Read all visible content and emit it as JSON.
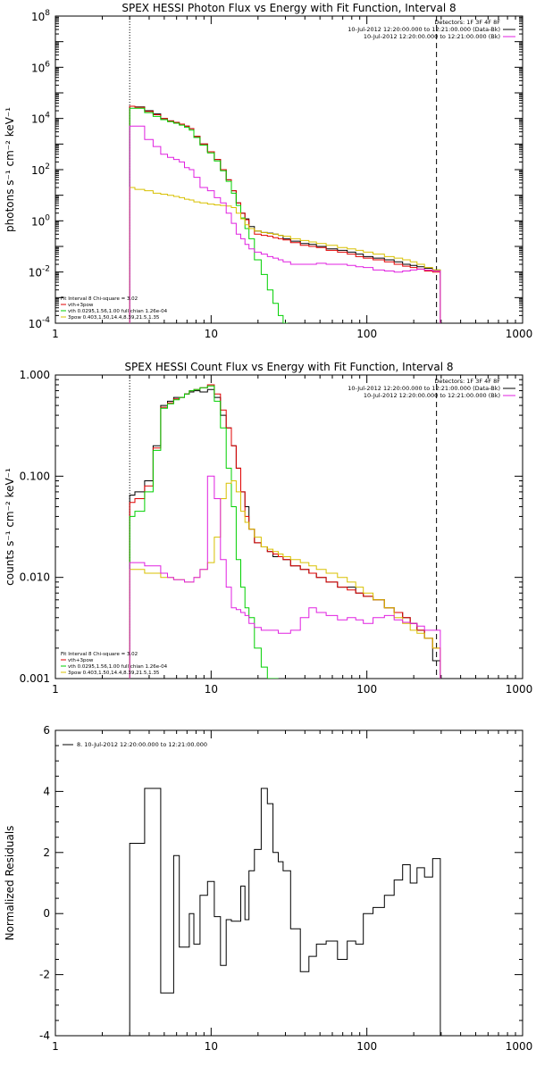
{
  "chart_data": [
    {
      "type": "line",
      "title": "SPEX HESSI Photon Flux vs Energy with Fit Function, Interval 8",
      "ylabel": "photons s⁻¹ cm⁻² keV⁻¹",
      "xlabel": "",
      "xscale": "log",
      "yscale": "log",
      "xlim": [
        1,
        1000
      ],
      "ylim": [
        0.0001,
        100000000
      ],
      "xticks": [
        "1",
        "10",
        "100",
        "1000"
      ],
      "yticks": [
        "10^-4",
        "10^-2",
        "10^0",
        "10^2",
        "10^4",
        "10^6",
        "10^8"
      ],
      "vlines": [
        {
          "x": 3,
          "style": "dotted"
        },
        {
          "x": 280,
          "style": "dashed"
        }
      ],
      "info_lines": [
        "Detectors: 1F 3F 4F 8F",
        "10-Jul-2012 12:20:00.000 to 12:21:00.000 (Data-Bk)",
        "10-Jul-2012 12:20:00.000 to 12:21:00.000 (Bk)"
      ],
      "info_colors": [
        "",
        "#000000",
        "#e020e0"
      ],
      "fit_legend": [
        "Fit Interval 8   Chi-square = 3.02",
        "vth+3pow",
        "vth 0.0295,1.56,1.00  full chian 1.26e-04",
        "3pow 0.403,1.50,14.4,8.39,21.5,1.35"
      ],
      "fit_colors": [
        "",
        "#e00000",
        "#00d000",
        "#d8c000"
      ],
      "series": [
        {
          "color": "#000000",
          "x": [
            3,
            3.5,
            4,
            4.5,
            5,
            5.5,
            6,
            6.5,
            7,
            7.5,
            8,
            9,
            10,
            11,
            12,
            13,
            14,
            15,
            16,
            17,
            18,
            20,
            22,
            24,
            26,
            28,
            30,
            35,
            40,
            45,
            50,
            60,
            70,
            80,
            90,
            100,
            120,
            140,
            160,
            180,
            200,
            220,
            250,
            280
          ],
          "y": [
            30000,
            28000,
            20000,
            15000,
            10000,
            8000,
            7000,
            6000,
            5000,
            4000,
            2000,
            1000,
            500,
            250,
            100,
            40,
            15,
            5,
            2,
            1.2,
            0.6,
            0.4,
            0.35,
            0.33,
            0.3,
            0.27,
            0.2,
            0.16,
            0.13,
            0.12,
            0.1,
            0.08,
            0.07,
            0.06,
            0.05,
            0.04,
            0.035,
            0.03,
            0.025,
            0.02,
            0.018,
            0.016,
            0.014,
            0.012
          ]
        },
        {
          "color": "#e00000",
          "x": [
            3,
            3.5,
            4,
            4.5,
            5,
            5.5,
            6,
            6.5,
            7,
            7.5,
            8,
            9,
            10,
            11,
            12,
            13,
            14,
            15,
            16,
            17,
            18,
            20,
            22,
            24,
            26,
            28,
            30,
            35,
            40,
            45,
            50,
            60,
            70,
            80,
            90,
            100,
            120,
            140,
            160,
            180,
            200,
            220,
            250,
            280
          ],
          "y": [
            30000,
            27000,
            19000,
            14000,
            10000,
            8000,
            7000,
            6000,
            5000,
            4000,
            2000,
            1000,
            500,
            250,
            100,
            40,
            15,
            5,
            2,
            1.1,
            0.5,
            0.3,
            0.27,
            0.25,
            0.22,
            0.2,
            0.18,
            0.14,
            0.11,
            0.1,
            0.09,
            0.07,
            0.06,
            0.05,
            0.04,
            0.035,
            0.03,
            0.025,
            0.02,
            0.017,
            0.015,
            0.013,
            0.011,
            0.01
          ]
        },
        {
          "color": "#00d000",
          "x": [
            3,
            3.5,
            4,
            4.5,
            5,
            5.5,
            6,
            6.5,
            7,
            7.5,
            8,
            9,
            10,
            11,
            12,
            13,
            14,
            15,
            16,
            17,
            18,
            20,
            22,
            24,
            26,
            28,
            30
          ],
          "y": [
            25000,
            25000,
            17000,
            12000,
            9000,
            7500,
            6500,
            5500,
            4500,
            3500,
            1800,
            900,
            450,
            220,
            90,
            35,
            12,
            4,
            1.3,
            0.5,
            0.2,
            0.03,
            0.008,
            0.002,
            0.0006,
            0.0002,
            0.0001
          ]
        },
        {
          "color": "#d8c000",
          "x": [
            3,
            3.5,
            4,
            4.5,
            5,
            5.5,
            6,
            6.5,
            7,
            7.5,
            8,
            9,
            10,
            11,
            12,
            13,
            14,
            15,
            16,
            17,
            18,
            20,
            22,
            24,
            26,
            28,
            30,
            35,
            40,
            45,
            50,
            60,
            70,
            80,
            90,
            100,
            120,
            140,
            160,
            180,
            200,
            220,
            250,
            280
          ],
          "y": [
            20,
            17,
            15,
            12,
            11,
            10,
            9,
            8,
            7,
            6.5,
            5.5,
            5,
            4.5,
            4.2,
            4,
            3.8,
            3.3,
            2,
            1.2,
            0.7,
            0.5,
            0.4,
            0.35,
            0.32,
            0.3,
            0.27,
            0.25,
            0.2,
            0.17,
            0.15,
            0.13,
            0.11,
            0.09,
            0.08,
            0.07,
            0.06,
            0.05,
            0.04,
            0.035,
            0.03,
            0.025,
            0.02,
            0.015,
            0.012
          ]
        },
        {
          "color": "#e020e0",
          "x": [
            3,
            3.5,
            4,
            4.5,
            5,
            5.5,
            6,
            6.5,
            7,
            7.5,
            8,
            9,
            10,
            11,
            12,
            13,
            14,
            15,
            16,
            17,
            18,
            20,
            22,
            24,
            26,
            28,
            30,
            35,
            40,
            45,
            50,
            60,
            70,
            80,
            90,
            100,
            120,
            140,
            160,
            180,
            200,
            220,
            250,
            280
          ],
          "y": [
            5000,
            5000,
            1500,
            800,
            400,
            300,
            250,
            200,
            120,
            100,
            50,
            20,
            15,
            8,
            5,
            2,
            0.8,
            0.3,
            0.2,
            0.12,
            0.08,
            0.06,
            0.05,
            0.04,
            0.035,
            0.03,
            0.025,
            0.02,
            0.02,
            0.02,
            0.022,
            0.02,
            0.02,
            0.018,
            0.016,
            0.015,
            0.012,
            0.011,
            0.01,
            0.011,
            0.012,
            0.013,
            0.012,
            0.011
          ]
        }
      ]
    },
    {
      "type": "line",
      "title": "SPEX HESSI Count Flux vs Energy with Fit Function, Interval 8",
      "ylabel": "counts s⁻¹ cm⁻² keV⁻¹",
      "xlabel": "",
      "xscale": "log",
      "yscale": "log",
      "xlim": [
        1,
        1000
      ],
      "ylim": [
        0.001,
        1
      ],
      "xticks": [
        "1",
        "10",
        "100",
        "1000"
      ],
      "yticks": [
        "0.001",
        "0.010",
        "0.100",
        "1.000"
      ],
      "vlines": [
        {
          "x": 3,
          "style": "dotted"
        },
        {
          "x": 280,
          "style": "dashed"
        }
      ],
      "info_lines": [
        "Detectors: 1F 3F 4F 8F",
        "10-Jul-2012 12:20:00.000 to 12:21:00.000 (Data-Bk)",
        "10-Jul-2012 12:20:00.000 to 12:21:00.000 (Bk)"
      ],
      "info_colors": [
        "",
        "#000000",
        "#e020e0"
      ],
      "fit_legend": [
        "Fit Interval 8   Chi-square = 3.02",
        "vth+3pow",
        "vth 0.0295,1.56,1.00  full chian 1.26e-04",
        "3pow 0.403,1.50,14.4,8.39,21.5,1.35"
      ],
      "fit_colors": [
        "",
        "#e00000",
        "#00d000",
        "#d8c000"
      ],
      "series": [
        {
          "color": "#000000",
          "x": [
            3,
            3.5,
            4,
            4.5,
            5,
            5.5,
            6,
            6.5,
            7,
            7.5,
            8,
            9,
            10,
            11,
            12,
            13,
            14,
            15,
            16,
            17,
            18,
            20,
            22,
            24,
            26,
            28,
            30,
            35,
            40,
            45,
            50,
            60,
            70,
            80,
            90,
            100,
            120,
            140,
            160,
            180,
            200,
            220,
            250,
            280
          ],
          "y": [
            0.065,
            0.07,
            0.09,
            0.2,
            0.5,
            0.55,
            0.6,
            0.6,
            0.65,
            0.68,
            0.7,
            0.68,
            0.72,
            0.6,
            0.4,
            0.3,
            0.2,
            0.12,
            0.07,
            0.05,
            0.03,
            0.022,
            0.02,
            0.018,
            0.016,
            0.016,
            0.015,
            0.013,
            0.012,
            0.011,
            0.01,
            0.009,
            0.008,
            0.008,
            0.007,
            0.0065,
            0.006,
            0.005,
            0.0045,
            0.004,
            0.0035,
            0.003,
            0.0025,
            0.0015
          ]
        },
        {
          "color": "#e00000",
          "x": [
            3,
            3.5,
            4,
            4.5,
            5,
            5.5,
            6,
            6.5,
            7,
            7.5,
            8,
            9,
            10,
            11,
            12,
            13,
            14,
            15,
            16,
            17,
            18,
            20,
            22,
            24,
            26,
            28,
            30,
            35,
            40,
            45,
            50,
            60,
            70,
            80,
            90,
            100,
            120,
            140,
            160,
            180,
            200,
            220,
            250,
            280
          ],
          "y": [
            0.055,
            0.06,
            0.08,
            0.19,
            0.48,
            0.53,
            0.58,
            0.6,
            0.65,
            0.7,
            0.72,
            0.75,
            0.8,
            0.65,
            0.45,
            0.3,
            0.2,
            0.12,
            0.07,
            0.04,
            0.03,
            0.022,
            0.02,
            0.018,
            0.017,
            0.016,
            0.015,
            0.013,
            0.012,
            0.011,
            0.01,
            0.009,
            0.008,
            0.0075,
            0.007,
            0.0065,
            0.006,
            0.005,
            0.0045,
            0.004,
            0.0035,
            0.003,
            0.0025,
            0.002
          ]
        },
        {
          "color": "#00d000",
          "x": [
            3,
            3.5,
            4,
            4.5,
            5,
            5.5,
            6,
            6.5,
            7,
            7.5,
            8,
            9,
            10,
            11,
            12,
            13,
            14,
            15,
            16,
            17,
            18,
            20,
            22,
            24,
            26
          ],
          "y": [
            0.04,
            0.045,
            0.07,
            0.18,
            0.47,
            0.52,
            0.57,
            0.6,
            0.65,
            0.7,
            0.72,
            0.75,
            0.78,
            0.55,
            0.3,
            0.12,
            0.05,
            0.015,
            0.008,
            0.005,
            0.004,
            0.002,
            0.0013,
            0.001,
            0.001
          ]
        },
        {
          "color": "#d8c000",
          "x": [
            3,
            3.5,
            4,
            4.5,
            5,
            5.5,
            6,
            6.5,
            7,
            7.5,
            8,
            9,
            10,
            11,
            12,
            13,
            14,
            15,
            16,
            17,
            18,
            20,
            22,
            24,
            26,
            28,
            30,
            35,
            40,
            45,
            50,
            60,
            70,
            80,
            90,
            100,
            120,
            140,
            160,
            180,
            200,
            220,
            250,
            280
          ],
          "y": [
            0.012,
            0.012,
            0.011,
            0.011,
            0.01,
            0.01,
            0.0095,
            0.0095,
            0.009,
            0.009,
            0.01,
            0.012,
            0.014,
            0.025,
            0.06,
            0.085,
            0.09,
            0.07,
            0.045,
            0.035,
            0.03,
            0.025,
            0.02,
            0.019,
            0.018,
            0.017,
            0.016,
            0.015,
            0.014,
            0.013,
            0.012,
            0.011,
            0.01,
            0.009,
            0.008,
            0.007,
            0.006,
            0.005,
            0.004,
            0.0035,
            0.003,
            0.0028,
            0.0025,
            0.002
          ]
        },
        {
          "color": "#e020e0",
          "x": [
            3,
            3.5,
            4,
            4.5,
            5,
            5.5,
            6,
            6.5,
            7,
            7.5,
            8,
            9,
            10,
            11,
            12,
            13,
            14,
            15,
            16,
            17,
            18,
            20,
            22,
            24,
            26,
            28,
            30,
            35,
            40,
            45,
            50,
            60,
            70,
            80,
            90,
            100,
            120,
            140,
            160,
            180,
            200,
            220,
            250,
            280
          ],
          "y": [
            0.014,
            0.014,
            0.013,
            0.013,
            0.011,
            0.01,
            0.0095,
            0.0095,
            0.009,
            0.009,
            0.01,
            0.012,
            0.1,
            0.06,
            0.015,
            0.008,
            0.005,
            0.0048,
            0.0045,
            0.0042,
            0.0035,
            0.0032,
            0.003,
            0.003,
            0.003,
            0.0028,
            0.0028,
            0.003,
            0.004,
            0.005,
            0.0045,
            0.0042,
            0.0038,
            0.004,
            0.0038,
            0.0035,
            0.004,
            0.0042,
            0.0038,
            0.0036,
            0.0035,
            0.0033,
            0.003,
            0.003
          ]
        }
      ]
    },
    {
      "type": "line",
      "title": "",
      "ylabel": "Normalized Residuals",
      "xlabel": "",
      "xscale": "log",
      "yscale": "linear",
      "xlim": [
        1,
        1000
      ],
      "ylim": [
        -4,
        6
      ],
      "xticks": [
        "1",
        "10",
        "100",
        "1000"
      ],
      "yticks": [
        "-4",
        "-2",
        "0",
        "2",
        "4",
        "6"
      ],
      "legend": [
        "8. 10-Jul-2012 12:20:00.000 to 12:21:00.000"
      ],
      "series": [
        {
          "color": "#000000",
          "x": [
            3,
            3.5,
            4,
            4.5,
            5,
            5.5,
            6,
            6.5,
            7,
            7.5,
            8,
            9,
            10,
            11,
            12,
            13,
            14,
            15,
            16,
            17,
            18,
            20,
            22,
            24,
            26,
            28,
            30,
            35,
            40,
            45,
            50,
            60,
            70,
            80,
            90,
            100,
            120,
            140,
            160,
            180,
            200,
            220,
            250,
            280
          ],
          "y": [
            2.3,
            2.3,
            4.1,
            4.1,
            -2.6,
            -2.6,
            1.9,
            -1.1,
            -1.1,
            0,
            -1,
            0.6,
            1.05,
            -0.1,
            -1.7,
            -0.2,
            -0.25,
            -0.25,
            0.9,
            -0.2,
            1.4,
            2.1,
            4.1,
            3.6,
            2.0,
            1.7,
            1.4,
            -0.5,
            -1.9,
            -1.4,
            -1,
            -0.9,
            -1.5,
            -0.9,
            -1.0,
            0,
            0.2,
            0.6,
            1.1,
            1.6,
            1.0,
            1.5,
            1.2,
            1.8
          ]
        }
      ]
    }
  ]
}
